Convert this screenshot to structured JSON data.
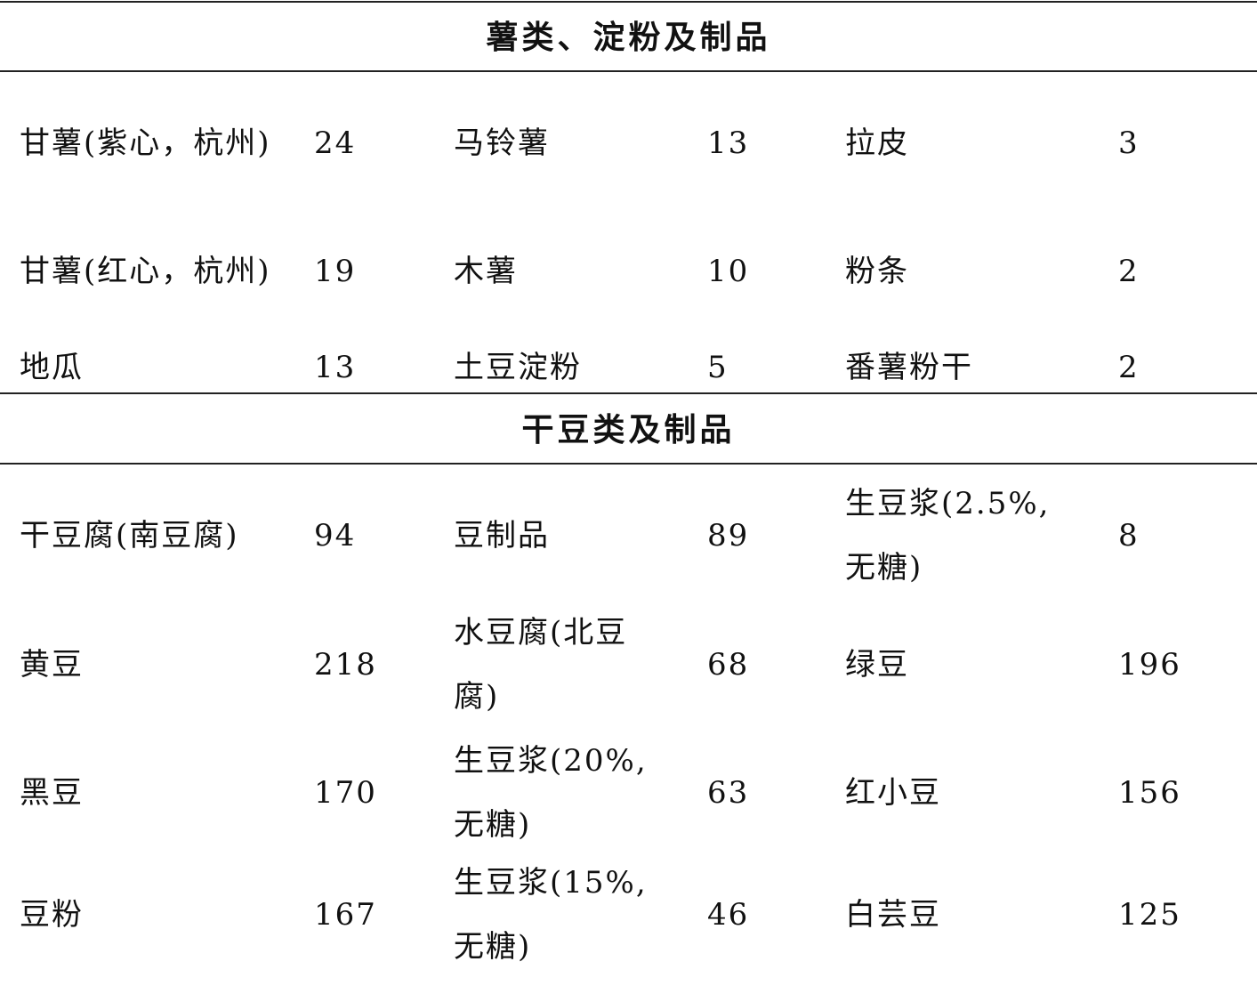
{
  "sections": [
    {
      "title": "薯类、淀粉及制品",
      "rows": [
        [
          "甘薯(紫心，杭州)",
          "24",
          "马铃薯",
          "13",
          "拉皮",
          "3"
        ],
        [
          "甘薯(红心，杭州)",
          "19",
          "木薯",
          "10",
          "粉条",
          "2"
        ],
        [
          "地瓜",
          "13",
          "土豆淀粉",
          "5",
          "番薯粉干",
          "2"
        ]
      ]
    },
    {
      "title": "干豆类及制品",
      "rows": [
        [
          "干豆腐(南豆腐)",
          "94",
          "豆制品",
          "89",
          "生豆浆(2.5%,无糖)",
          "8"
        ],
        [
          "黄豆",
          "218",
          "水豆腐(北豆腐)",
          "68",
          "绿豆",
          "196"
        ],
        [
          "黑豆",
          "170",
          "生豆浆(20%,无糖)",
          "63",
          "红小豆",
          "156"
        ],
        [
          "豆粉",
          "167",
          "生豆浆(15%,无糖)",
          "46",
          "白芸豆",
          "125"
        ]
      ]
    }
  ]
}
